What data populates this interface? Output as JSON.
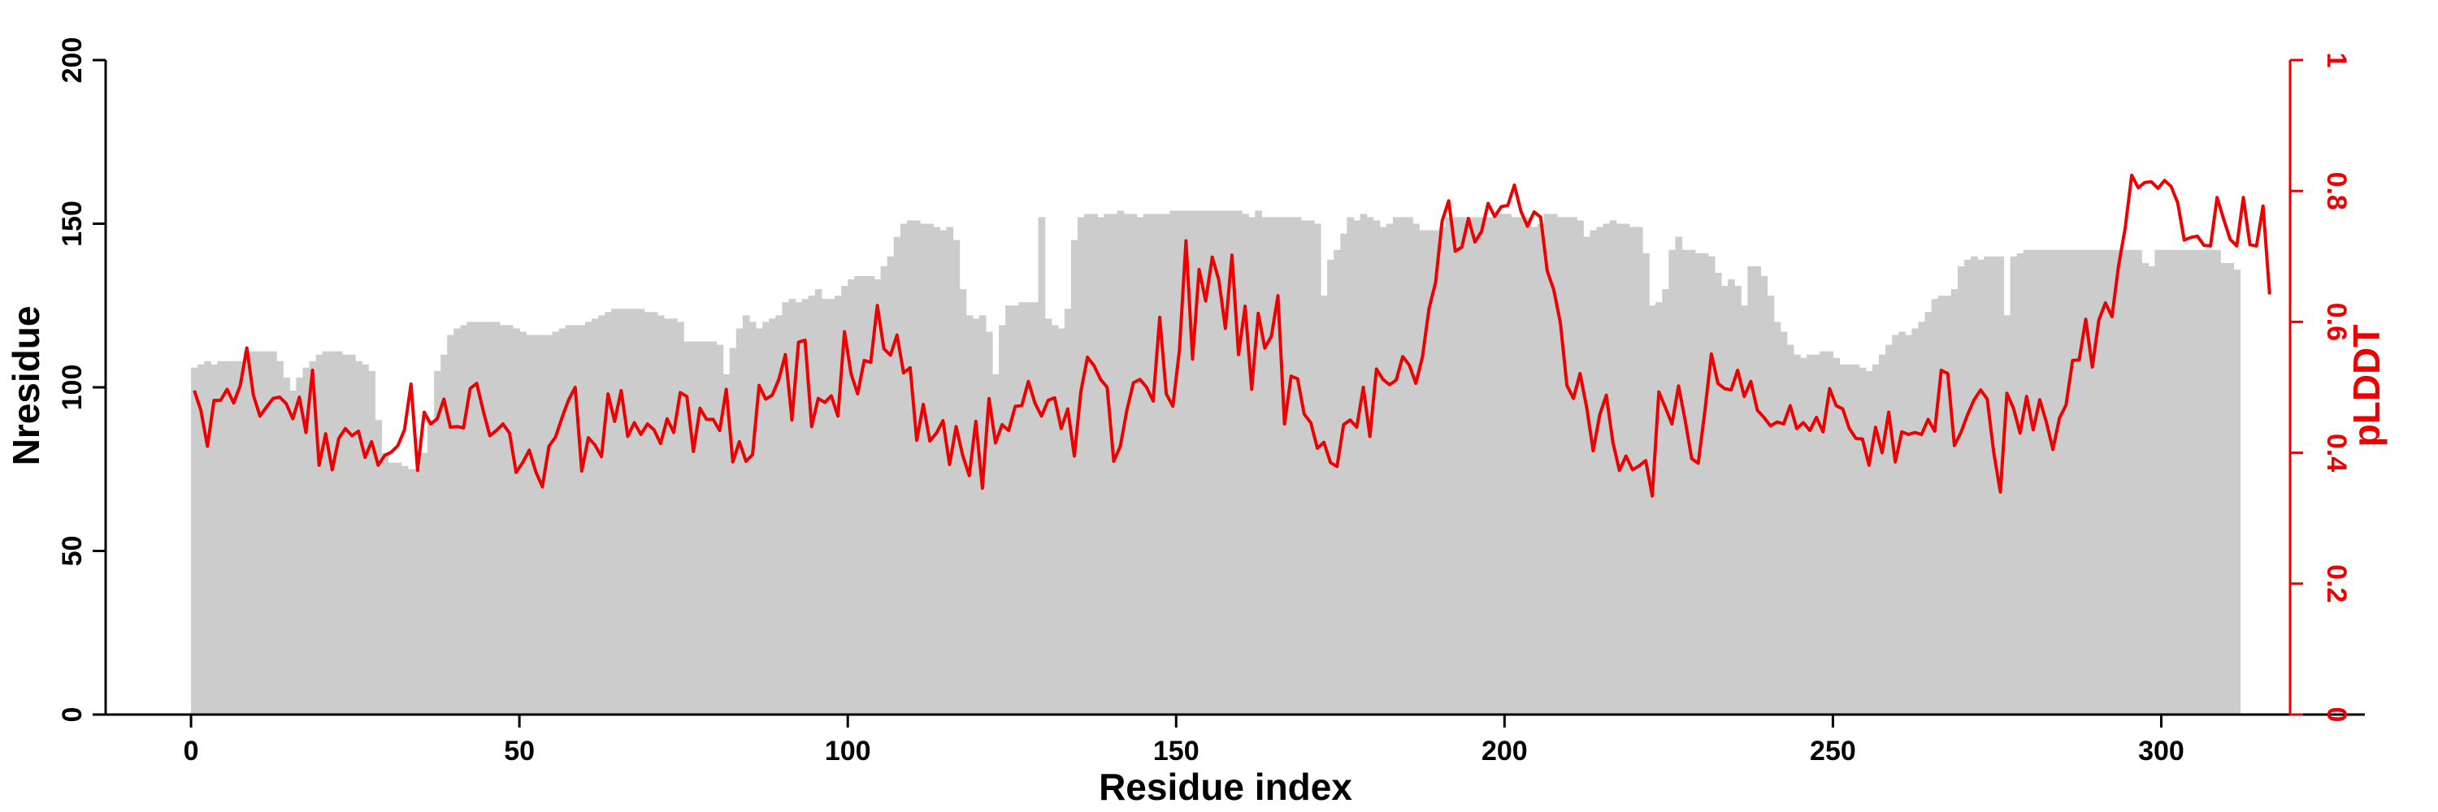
{
  "chart_data": {
    "type": "bar+line",
    "xlabel": "Residue index",
    "ylabel_left": "Nresidue",
    "ylabel_right": "pLDDT",
    "xlim": [
      -13,
      331
    ],
    "ylim_left": [
      0,
      200
    ],
    "ylim_right": [
      0,
      1
    ],
    "x_ticks": [
      "0",
      "50",
      "100",
      "150",
      "200",
      "250",
      "300"
    ],
    "y_left_ticks": [
      "0",
      "50",
      "100",
      "150",
      "200"
    ],
    "y_right_ticks": [
      "0",
      "0.2",
      "0.4",
      "0.6",
      "0.8",
      "1"
    ],
    "colors": {
      "bars": "#cccccc",
      "line": "#ee0000",
      "axis": "#000000",
      "right_axis": "#ee0000"
    },
    "series": [
      {
        "type": "bar",
        "axis": "left",
        "x_start": 0,
        "values": [
          106,
          107,
          108,
          107,
          108,
          108,
          108,
          108,
          111,
          111,
          111,
          111,
          111,
          108,
          103,
          99,
          103,
          106,
          108,
          110,
          111,
          111,
          111,
          110,
          110,
          108,
          107,
          105,
          90,
          80,
          77,
          77,
          76,
          75,
          75,
          80,
          90,
          105,
          110,
          116,
          118,
          119,
          120,
          120,
          120,
          120,
          120,
          119,
          119,
          118,
          117,
          116,
          116,
          116,
          116,
          117,
          118,
          119,
          119,
          119,
          120,
          121,
          122,
          123,
          124,
          124,
          124,
          124,
          124,
          123,
          123,
          122,
          121,
          121,
          120,
          114,
          114,
          114,
          114,
          114,
          113,
          104,
          112,
          118,
          122,
          120,
          118,
          120,
          121,
          122,
          126,
          127,
          126,
          127,
          128,
          130,
          127,
          127,
          128,
          131,
          133,
          134,
          134,
          134,
          133,
          137,
          140,
          146,
          150,
          151,
          151,
          150,
          150,
          149,
          148,
          149,
          145,
          130,
          122,
          121,
          122,
          117,
          104,
          119,
          125,
          125,
          126,
          126,
          126,
          152,
          121,
          119,
          118,
          124,
          145,
          152,
          153,
          153,
          152,
          153,
          153,
          154,
          153,
          153,
          152,
          153,
          153,
          153,
          153,
          154,
          154,
          154,
          154,
          154,
          154,
          154,
          154,
          154,
          154,
          154,
          153,
          152,
          154,
          152,
          152,
          152,
          152,
          152,
          152,
          151,
          151,
          150,
          128,
          139,
          142,
          147,
          152,
          151,
          153,
          152,
          151,
          149,
          150,
          152,
          152,
          152,
          150,
          148,
          148,
          148,
          149,
          152,
          152,
          152,
          152,
          152,
          152,
          152,
          152,
          153,
          153,
          152,
          152,
          152,
          149,
          150,
          153,
          153,
          152,
          152,
          152,
          151,
          146,
          148,
          149,
          150,
          151,
          150,
          150,
          149,
          149,
          141,
          125,
          126,
          130,
          142,
          146,
          142,
          142,
          141,
          141,
          140,
          135,
          131,
          133,
          131,
          125,
          137,
          137,
          134,
          128,
          120,
          117,
          113,
          110,
          109,
          110,
          110,
          111,
          111,
          109,
          107,
          107,
          107,
          106,
          105,
          107,
          110,
          113,
          116,
          117,
          116,
          118,
          120,
          123,
          127,
          128,
          128,
          130,
          137,
          139,
          140,
          139,
          140,
          140,
          140,
          122,
          140,
          141,
          142,
          142,
          142,
          142,
          142,
          142,
          142,
          142,
          142,
          142,
          142,
          142,
          142,
          142,
          142,
          142,
          142,
          142,
          138,
          137,
          142,
          142,
          142,
          142,
          142,
          142,
          142,
          142,
          142,
          142,
          138,
          138,
          136
        ]
      },
      {
        "type": "line",
        "axis": "right",
        "x_start": 0,
        "values": [
          0.495,
          0.465,
          0.41,
          0.48,
          0.48,
          0.497,
          0.476,
          0.503,
          0.56,
          0.488,
          0.456,
          0.47,
          0.483,
          0.485,
          0.475,
          0.452,
          0.485,
          0.431,
          0.526,
          0.381,
          0.429,
          0.374,
          0.422,
          0.437,
          0.426,
          0.433,
          0.393,
          0.417,
          0.381,
          0.396,
          0.401,
          0.411,
          0.435,
          0.505,
          0.373,
          0.462,
          0.444,
          0.452,
          0.482,
          0.439,
          0.44,
          0.438,
          0.498,
          0.506,
          0.464,
          0.426,
          0.434,
          0.444,
          0.43,
          0.37,
          0.385,
          0.404,
          0.371,
          0.348,
          0.41,
          0.424,
          0.454,
          0.481,
          0.5,
          0.372,
          0.423,
          0.412,
          0.394,
          0.49,
          0.448,
          0.495,
          0.425,
          0.446,
          0.428,
          0.444,
          0.435,
          0.414,
          0.452,
          0.431,
          0.492,
          0.486,
          0.402,
          0.468,
          0.451,
          0.451,
          0.434,
          0.497,
          0.386,
          0.417,
          0.387,
          0.397,
          0.503,
          0.482,
          0.488,
          0.512,
          0.55,
          0.45,
          0.569,
          0.572,
          0.44,
          0.483,
          0.477,
          0.487,
          0.456,
          0.585,
          0.521,
          0.49,
          0.541,
          0.538,
          0.625,
          0.559,
          0.549,
          0.58,
          0.522,
          0.53,
          0.419,
          0.474,
          0.418,
          0.43,
          0.449,
          0.382,
          0.44,
          0.396,
          0.365,
          0.448,
          0.346,
          0.483,
          0.415,
          0.443,
          0.434,
          0.471,
          0.472,
          0.509,
          0.476,
          0.456,
          0.48,
          0.484,
          0.437,
          0.467,
          0.395,
          0.494,
          0.546,
          0.533,
          0.512,
          0.5,
          0.387,
          0.41,
          0.465,
          0.507,
          0.512,
          0.5,
          0.479,
          0.607,
          0.49,
          0.471,
          0.557,
          0.724,
          0.543,
          0.68,
          0.632,
          0.699,
          0.664,
          0.59,
          0.702,
          0.55,
          0.624,
          0.497,
          0.613,
          0.56,
          0.578,
          0.64,
          0.444,
          0.517,
          0.513,
          0.459,
          0.446,
          0.407,
          0.416,
          0.385,
          0.379,
          0.443,
          0.45,
          0.439,
          0.5,
          0.425,
          0.528,
          0.512,
          0.504,
          0.511,
          0.547,
          0.534,
          0.506,
          0.546,
          0.62,
          0.66,
          0.754,
          0.785,
          0.708,
          0.714,
          0.758,
          0.722,
          0.738,
          0.781,
          0.761,
          0.776,
          0.778,
          0.809,
          0.769,
          0.746,
          0.768,
          0.76,
          0.678,
          0.649,
          0.599,
          0.503,
          0.483,
          0.521,
          0.47,
          0.403,
          0.458,
          0.488,
          0.416,
          0.373,
          0.395,
          0.374,
          0.38,
          0.388,
          0.334,
          0.493,
          0.469,
          0.444,
          0.502,
          0.45,
          0.391,
          0.384,
          0.463,
          0.551,
          0.506,
          0.498,
          0.496,
          0.526,
          0.486,
          0.509,
          0.465,
          0.454,
          0.441,
          0.447,
          0.444,
          0.472,
          0.437,
          0.446,
          0.434,
          0.454,
          0.432,
          0.498,
          0.472,
          0.467,
          0.437,
          0.422,
          0.421,
          0.381,
          0.439,
          0.4,
          0.462,
          0.386,
          0.432,
          0.428,
          0.431,
          0.428,
          0.451,
          0.433,
          0.526,
          0.521,
          0.411,
          0.431,
          0.458,
          0.481,
          0.496,
          0.482,
          0.4,
          0.34,
          0.491,
          0.468,
          0.43,
          0.486,
          0.435,
          0.481,
          0.447,
          0.405,
          0.453,
          0.473,
          0.541,
          0.542,
          0.604,
          0.531,
          0.603,
          0.629,
          0.608,
          0.686,
          0.743,
          0.824,
          0.805,
          0.813,
          0.814,
          0.804,
          0.816,
          0.807,
          0.782,
          0.725,
          0.729,
          0.731,
          0.717,
          0.716,
          0.79,
          0.757,
          0.726,
          0.716,
          0.79,
          0.718,
          0.716,
          0.777,
          0.642
        ]
      }
    ]
  }
}
